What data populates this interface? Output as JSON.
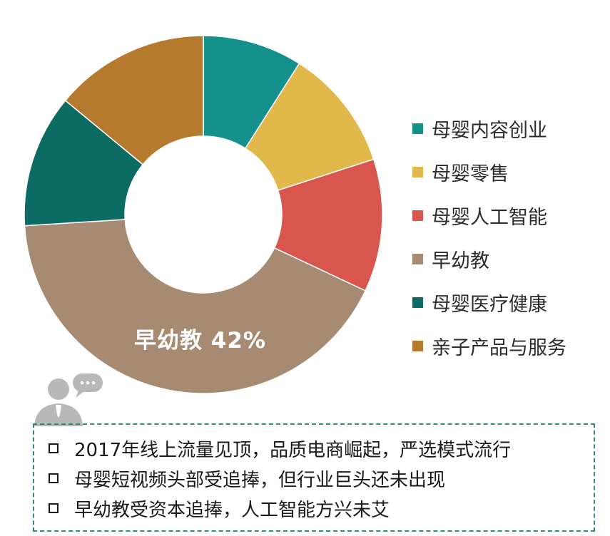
{
  "chart_data": {
    "type": "pie",
    "donut": true,
    "categories": [
      "母婴内容创业",
      "母婴零售",
      "母婴人工智能",
      "早幼教",
      "母婴医疗健康",
      "亲子产品与服务"
    ],
    "values": [
      9,
      11,
      12,
      42,
      12,
      14
    ],
    "colors": [
      "#13918a",
      "#e2b84b",
      "#d9564f",
      "#a68a72",
      "#0c6b63",
      "#b57a2e"
    ],
    "data_labels": [
      {
        "category": "早幼教",
        "text": "早幼教  42%"
      }
    ],
    "legend_position": "right"
  },
  "notes": [
    "2017年线上流量见顶，品质电商崛起，严选模式流行",
    "母婴短视频头部受追捧，但行业巨头还未出现",
    "早幼教受资本追捧，人工智能方兴未艾"
  ]
}
